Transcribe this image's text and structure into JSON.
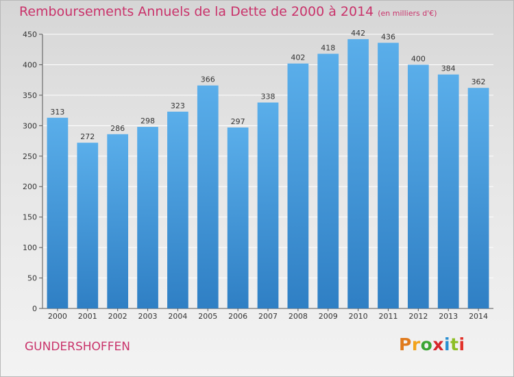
{
  "header": {
    "title": "Remboursements Annuels de la Dette de 2000 à 2014",
    "unit": "(en milliers d'€)"
  },
  "footer": {
    "city": "GUNDERSHOFFEN",
    "logo": "Proxiti"
  },
  "colors": {
    "title": "#c9326a",
    "bar_top": "#5aaeea",
    "bar_bottom": "#2f7fc4",
    "grid": "#ffffff",
    "logo_letters": [
      "#e07a1c",
      "#f2a31b",
      "#3aa534",
      "#d6262b",
      "#2a8fd1",
      "#8dbe24",
      "#e2322a"
    ]
  },
  "chart_data": {
    "type": "bar",
    "title": "Remboursements Annuels de la Dette de 2000 à 2014",
    "subtitle": "(en milliers d'€)",
    "xlabel": "",
    "ylabel": "",
    "categories": [
      "2000",
      "2001",
      "2002",
      "2003",
      "2004",
      "2005",
      "2006",
      "2007",
      "2008",
      "2009",
      "2010",
      "2011",
      "2012",
      "2013",
      "2014"
    ],
    "values": [
      313,
      272,
      286,
      298,
      323,
      366,
      297,
      338,
      402,
      418,
      442,
      436,
      400,
      384,
      362
    ],
    "ylim": [
      0,
      450
    ],
    "yticks": [
      0,
      50,
      100,
      150,
      200,
      250,
      300,
      350,
      400,
      450
    ],
    "grid": true,
    "legend": "none",
    "data_labels": true
  }
}
